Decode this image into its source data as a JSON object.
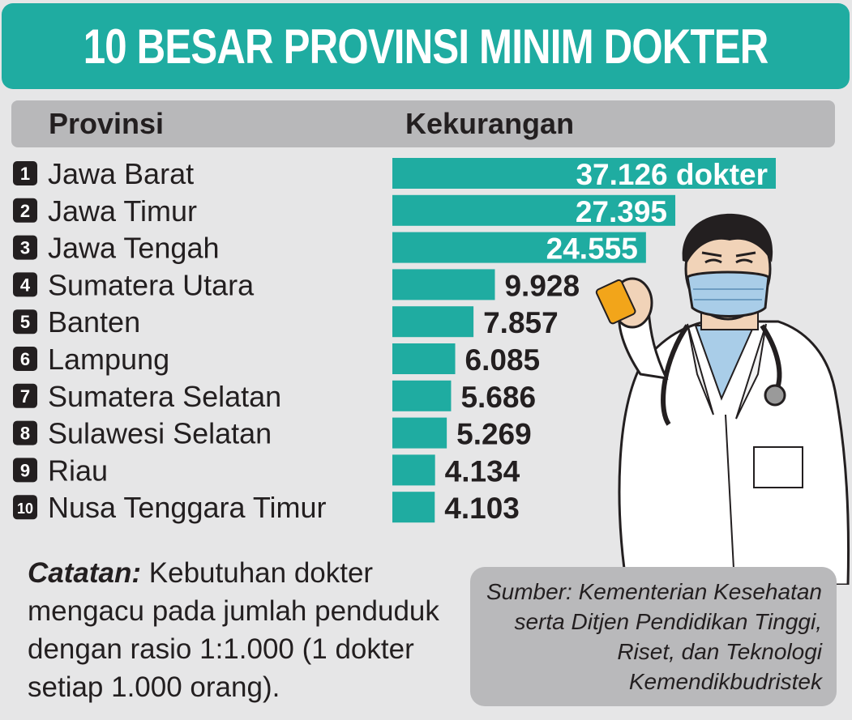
{
  "title": "10 BESAR PROVINSI MINIM DOKTER",
  "header": {
    "col_province": "Provinsi",
    "col_shortage": "Kekurangan"
  },
  "chart_data": {
    "type": "bar",
    "orientation": "horizontal",
    "categories": [
      "Jawa Barat",
      "Jawa Timur",
      "Jawa Tengah",
      "Sumatera Utara",
      "Banten",
      "Lampung",
      "Sumatera Selatan",
      "Sulawesi Selatan",
      "Riau",
      "Nusa Tenggara Timur"
    ],
    "ranks": [
      "1",
      "2",
      "3",
      "4",
      "5",
      "6",
      "7",
      "8",
      "9",
      "10"
    ],
    "values": [
      37126,
      27395,
      24555,
      9928,
      7857,
      6085,
      5686,
      5269,
      4134,
      4103
    ],
    "value_labels": [
      "37.126 dokter",
      "27.395",
      "24.555",
      "9.928",
      "7.857",
      "6.085",
      "5.686",
      "5.269",
      "4.134",
      "4.103"
    ],
    "bar_color": "#1faca1",
    "grid": false,
    "legend": "none"
  },
  "note": {
    "label": "Catatan:",
    "text": "Kebutuhan dokter mengacu pada jumlah penduduk dengan rasio 1:1.000 (1 dokter setiap 1.000 orang)."
  },
  "source": {
    "line1": "Sumber: Kementerian Kesehatan",
    "line2": "serta Ditjen Pendidikan Tinggi,",
    "line3": "Riset, dan Teknologi",
    "line4": "Kemendikbudristek"
  },
  "colors": {
    "accent": "#1faca1",
    "background": "#e6e6e7",
    "header_band": "#b8b8ba",
    "text": "#231f20"
  }
}
